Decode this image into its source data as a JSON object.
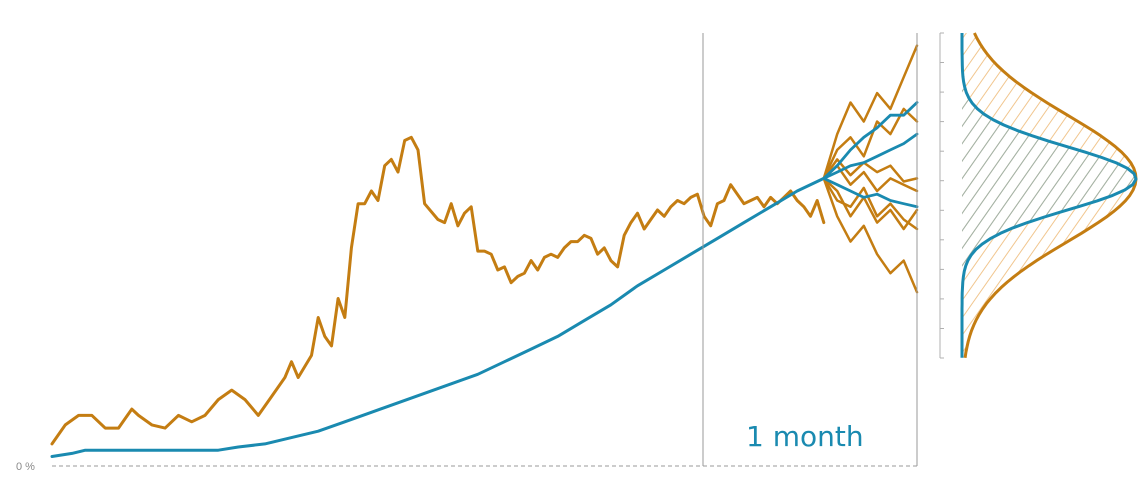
{
  "chart_data": {
    "type": "line",
    "title": "",
    "xlabel": "",
    "ylabel": "",
    "y_tick_labels": [
      "0 %"
    ],
    "annotations": {
      "forecast_horizon": "1 month"
    },
    "colors": {
      "volatile_series": "#c47d12",
      "smooth_series": "#1a8ab0",
      "baseline": "#9a9a9a",
      "divider": "#9a9a9a",
      "distribution_hatch_outer": "#f1c68f",
      "distribution_hatch_inner": "#9fb3ab"
    },
    "history": {
      "x_count": 130,
      "volatile": {
        "name": "",
        "values": [
          [
            0,
            2
          ],
          [
            2,
            8
          ],
          [
            4,
            11
          ],
          [
            6,
            11
          ],
          [
            8,
            7
          ],
          [
            10,
            7
          ],
          [
            12,
            13
          ],
          [
            13,
            11
          ],
          [
            15,
            8
          ],
          [
            17,
            7
          ],
          [
            19,
            11
          ],
          [
            21,
            9
          ],
          [
            23,
            11
          ],
          [
            25,
            16
          ],
          [
            27,
            19
          ],
          [
            29,
            16
          ],
          [
            31,
            11
          ],
          [
            33,
            17
          ],
          [
            35,
            23
          ],
          [
            36,
            28
          ],
          [
            37,
            23
          ],
          [
            39,
            30
          ],
          [
            40,
            42
          ],
          [
            41,
            36
          ],
          [
            42,
            33
          ],
          [
            43,
            48
          ],
          [
            44,
            42
          ],
          [
            45,
            64
          ],
          [
            46,
            78
          ],
          [
            47,
            78
          ],
          [
            48,
            82
          ],
          [
            49,
            79
          ],
          [
            50,
            90
          ],
          [
            51,
            92
          ],
          [
            52,
            88
          ],
          [
            53,
            98
          ],
          [
            54,
            99
          ],
          [
            55,
            95
          ],
          [
            56,
            78
          ],
          [
            58,
            73
          ],
          [
            59,
            72
          ],
          [
            60,
            78
          ],
          [
            61,
            71
          ],
          [
            62,
            75
          ],
          [
            63,
            77
          ],
          [
            64,
            63
          ],
          [
            65,
            63
          ],
          [
            66,
            62
          ],
          [
            67,
            57
          ],
          [
            68,
            58
          ],
          [
            69,
            53
          ],
          [
            70,
            55
          ],
          [
            71,
            56
          ],
          [
            72,
            60
          ],
          [
            73,
            57
          ],
          [
            74,
            61
          ],
          [
            75,
            62
          ],
          [
            76,
            61
          ],
          [
            77,
            64
          ],
          [
            78,
            66
          ],
          [
            79,
            66
          ],
          [
            80,
            68
          ],
          [
            81,
            67
          ],
          [
            82,
            62
          ],
          [
            83,
            64
          ],
          [
            84,
            60
          ],
          [
            85,
            58
          ],
          [
            86,
            68
          ],
          [
            87,
            72
          ],
          [
            88,
            75
          ],
          [
            89,
            70
          ],
          [
            90,
            73
          ],
          [
            91,
            76
          ],
          [
            92,
            74
          ],
          [
            93,
            77
          ],
          [
            94,
            79
          ],
          [
            95,
            78
          ],
          [
            96,
            80
          ],
          [
            97,
            81
          ],
          [
            98,
            74
          ],
          [
            99,
            71
          ],
          [
            100,
            78
          ],
          [
            101,
            79
          ],
          [
            102,
            84
          ],
          [
            103,
            81
          ],
          [
            104,
            78
          ],
          [
            105,
            79
          ],
          [
            106,
            80
          ],
          [
            107,
            77
          ],
          [
            108,
            80
          ],
          [
            109,
            78
          ],
          [
            110,
            80
          ],
          [
            111,
            82
          ],
          [
            112,
            79
          ],
          [
            113,
            77
          ],
          [
            114,
            74
          ],
          [
            115,
            79
          ],
          [
            116,
            72
          ]
        ]
      },
      "smooth": {
        "name": "",
        "values": [
          [
            0,
            -2
          ],
          [
            3,
            -1
          ],
          [
            5,
            0
          ],
          [
            10,
            0
          ],
          [
            15,
            0
          ],
          [
            20,
            0
          ],
          [
            25,
            0
          ],
          [
            28,
            1
          ],
          [
            32,
            2
          ],
          [
            36,
            4
          ],
          [
            40,
            6
          ],
          [
            44,
            9
          ],
          [
            48,
            12
          ],
          [
            52,
            15
          ],
          [
            56,
            18
          ],
          [
            60,
            21
          ],
          [
            64,
            24
          ],
          [
            68,
            28
          ],
          [
            72,
            32
          ],
          [
            76,
            36
          ],
          [
            80,
            41
          ],
          [
            84,
            46
          ],
          [
            88,
            52
          ],
          [
            92,
            57
          ],
          [
            96,
            62
          ],
          [
            100,
            67
          ],
          [
            104,
            72
          ],
          [
            108,
            77
          ],
          [
            112,
            82
          ],
          [
            116,
            86
          ]
        ]
      }
    },
    "forecast": {
      "start_x": 116,
      "end_x": 130,
      "start_value": 86,
      "volatile_paths": [
        [
          [
            116,
            86
          ],
          [
            118,
            92
          ],
          [
            120,
            87
          ],
          [
            122,
            91
          ],
          [
            124,
            88
          ],
          [
            126,
            90
          ],
          [
            128,
            85
          ],
          [
            130,
            86
          ]
        ],
        [
          [
            116,
            86
          ],
          [
            118,
            95
          ],
          [
            120,
            99
          ],
          [
            122,
            93
          ],
          [
            124,
            104
          ],
          [
            126,
            100
          ],
          [
            128,
            108
          ],
          [
            130,
            104
          ]
        ],
        [
          [
            116,
            86
          ],
          [
            118,
            79
          ],
          [
            120,
            77
          ],
          [
            122,
            83
          ],
          [
            124,
            74
          ],
          [
            126,
            78
          ],
          [
            128,
            73
          ],
          [
            130,
            70
          ]
        ],
        [
          [
            116,
            86
          ],
          [
            118,
            82
          ],
          [
            120,
            74
          ],
          [
            122,
            80
          ],
          [
            124,
            72
          ],
          [
            126,
            76
          ],
          [
            128,
            70
          ],
          [
            130,
            76
          ]
        ],
        [
          [
            116,
            86
          ],
          [
            118,
            74
          ],
          [
            120,
            66
          ],
          [
            122,
            71
          ],
          [
            124,
            62
          ],
          [
            126,
            56
          ],
          [
            128,
            60
          ],
          [
            130,
            50
          ]
        ],
        [
          [
            116,
            86
          ],
          [
            118,
            100
          ],
          [
            120,
            110
          ],
          [
            122,
            104
          ],
          [
            124,
            113
          ],
          [
            126,
            108
          ],
          [
            128,
            118
          ],
          [
            130,
            128
          ]
        ],
        [
          [
            116,
            86
          ],
          [
            118,
            90
          ],
          [
            120,
            84
          ],
          [
            122,
            88
          ],
          [
            124,
            82
          ],
          [
            126,
            86
          ],
          [
            128,
            84
          ],
          [
            130,
            82
          ]
        ]
      ],
      "smooth_paths": [
        [
          [
            116,
            86
          ],
          [
            118,
            90
          ],
          [
            120,
            95
          ],
          [
            122,
            99
          ],
          [
            124,
            102
          ],
          [
            126,
            106
          ],
          [
            128,
            106
          ],
          [
            130,
            110
          ]
        ],
        [
          [
            116,
            86
          ],
          [
            118,
            88
          ],
          [
            120,
            90
          ],
          [
            122,
            91
          ],
          [
            124,
            93
          ],
          [
            126,
            95
          ],
          [
            128,
            97
          ],
          [
            130,
            100
          ]
        ],
        [
          [
            116,
            86
          ],
          [
            118,
            84
          ],
          [
            120,
            82
          ],
          [
            122,
            80
          ],
          [
            124,
            81
          ],
          [
            126,
            79
          ],
          [
            128,
            78
          ],
          [
            130,
            77
          ]
        ]
      ]
    },
    "distribution": {
      "volatile_density": {
        "mean": 86,
        "sd": 20
      },
      "smooth_density": {
        "mean": 86,
        "sd": 10
      }
    },
    "ylim": [
      -5,
      132
    ]
  }
}
